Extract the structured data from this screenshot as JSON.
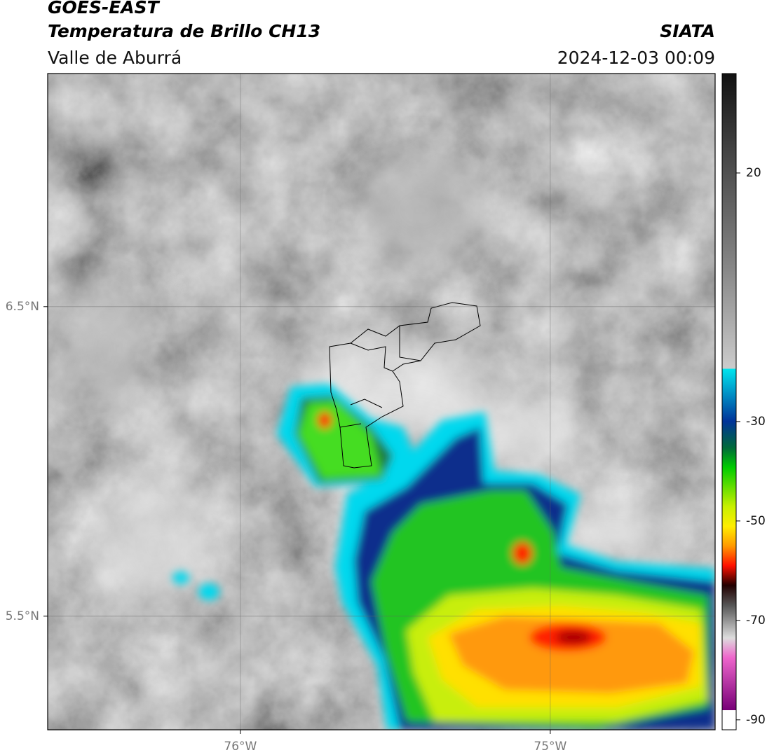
{
  "header": {
    "title": "GOES-EAST",
    "subtitle": "Temperatura de Brillo CH13",
    "region": "Valle de Aburrá",
    "source": "SIATA",
    "timestamp": "2024-12-03 00:09"
  },
  "map": {
    "xlim": [
      -76.622,
      -74.468
    ],
    "ylim": [
      5.133,
      7.253
    ],
    "xticks": [
      {
        "value": -76,
        "label": "76°W"
      },
      {
        "value": -75,
        "label": "75°W"
      }
    ],
    "yticks": [
      {
        "value": 6.5,
        "label": "6.5°N"
      },
      {
        "value": 5.5,
        "label": "5.5°N"
      }
    ],
    "grid": true
  },
  "colorbar": {
    "clim": [
      -92,
      40
    ],
    "ticks": [
      20,
      -30,
      -50,
      -70,
      -90
    ]
  }
}
